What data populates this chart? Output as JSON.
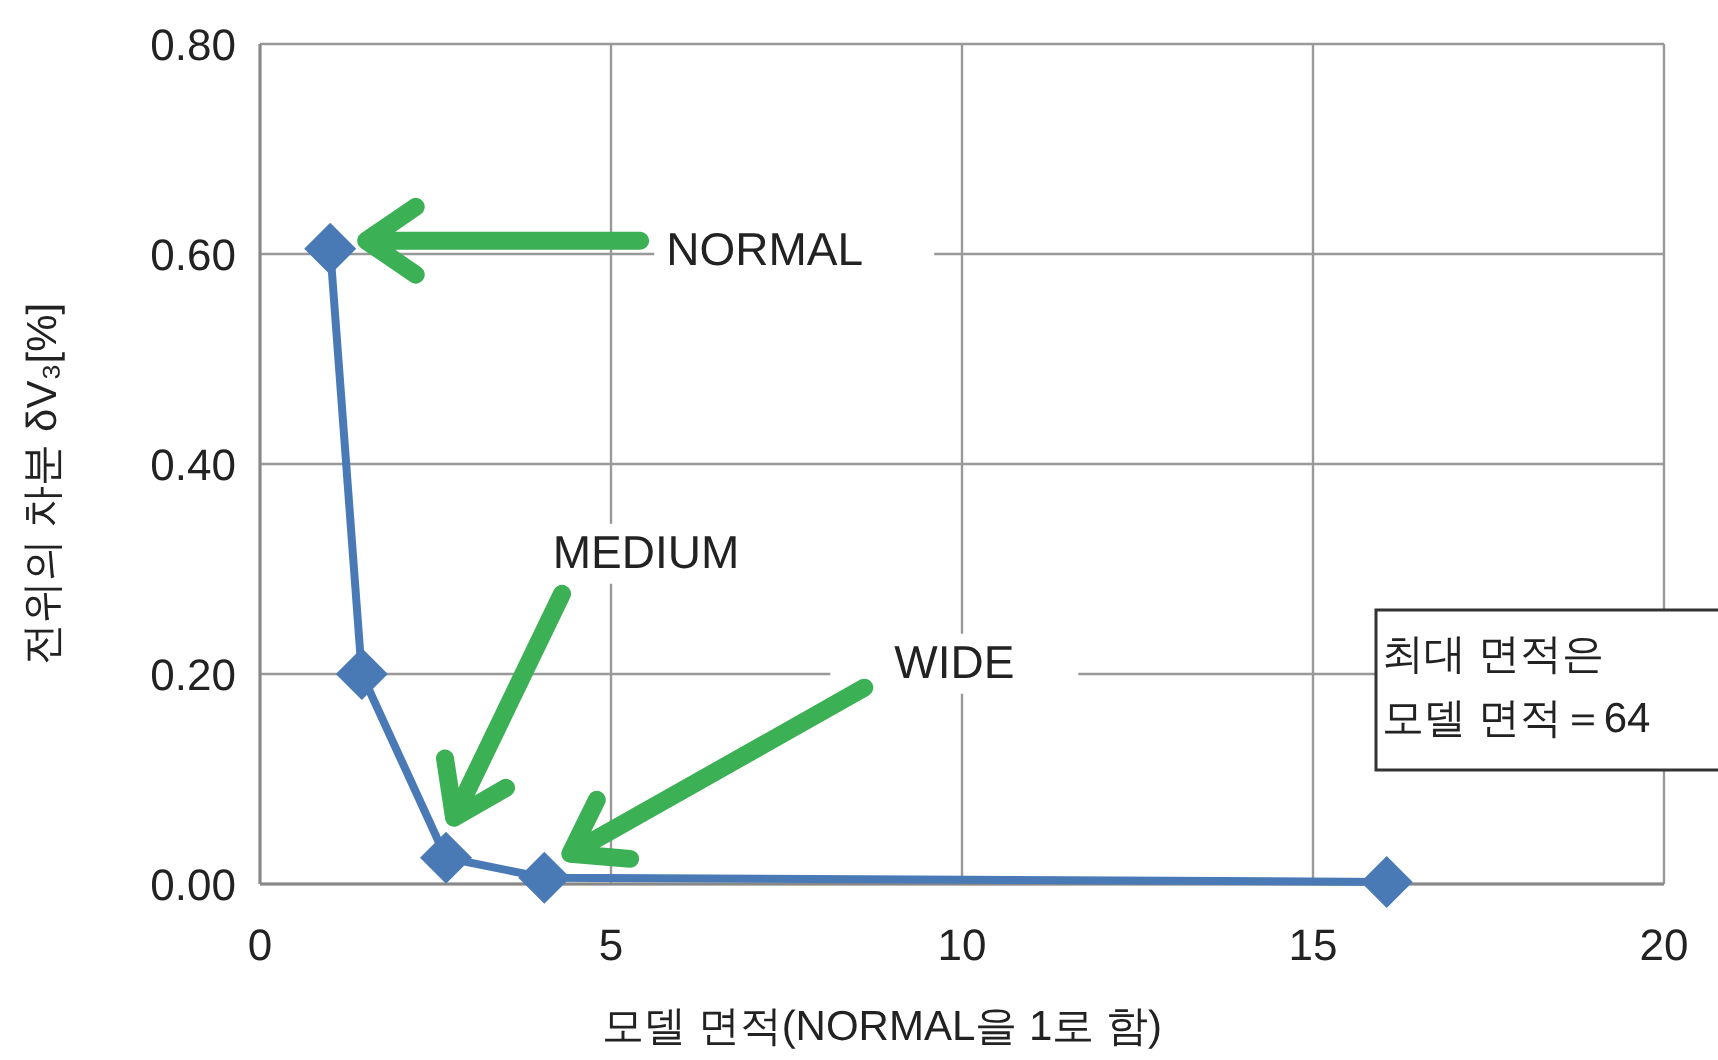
{
  "chart_data": {
    "type": "line",
    "xlabel": "모델 면적(NORMAL을 1로 함)",
    "ylabel": "전위의 차분 δV₃[%]",
    "x": [
      1,
      1.45,
      2.65,
      4.05,
      16.05
    ],
    "series": [
      {
        "color": "#4a7ab5",
        "values": [
          0.605,
          0.2,
          0.025,
          0.006,
          0.002
        ]
      }
    ],
    "xlim": [
      0,
      20
    ],
    "xticks": [
      0,
      5,
      10,
      15,
      20
    ],
    "ylim": [
      0,
      0.8
    ],
    "yticks": [
      {
        "value": 0,
        "label": "0.00"
      },
      {
        "value": 0.2,
        "label": "0.20"
      },
      {
        "value": 0.4,
        "label": "0.40"
      },
      {
        "value": 0.6,
        "label": "0.60"
      },
      {
        "value": 0.8,
        "label": "0.80"
      }
    ],
    "grid": true,
    "marker": "diamond",
    "line_style": "solid",
    "annotations": [
      "NORMAL",
      "MEDIUM",
      "WIDE",
      "최대 면적은\n모델 면적＝64"
    ]
  }
}
